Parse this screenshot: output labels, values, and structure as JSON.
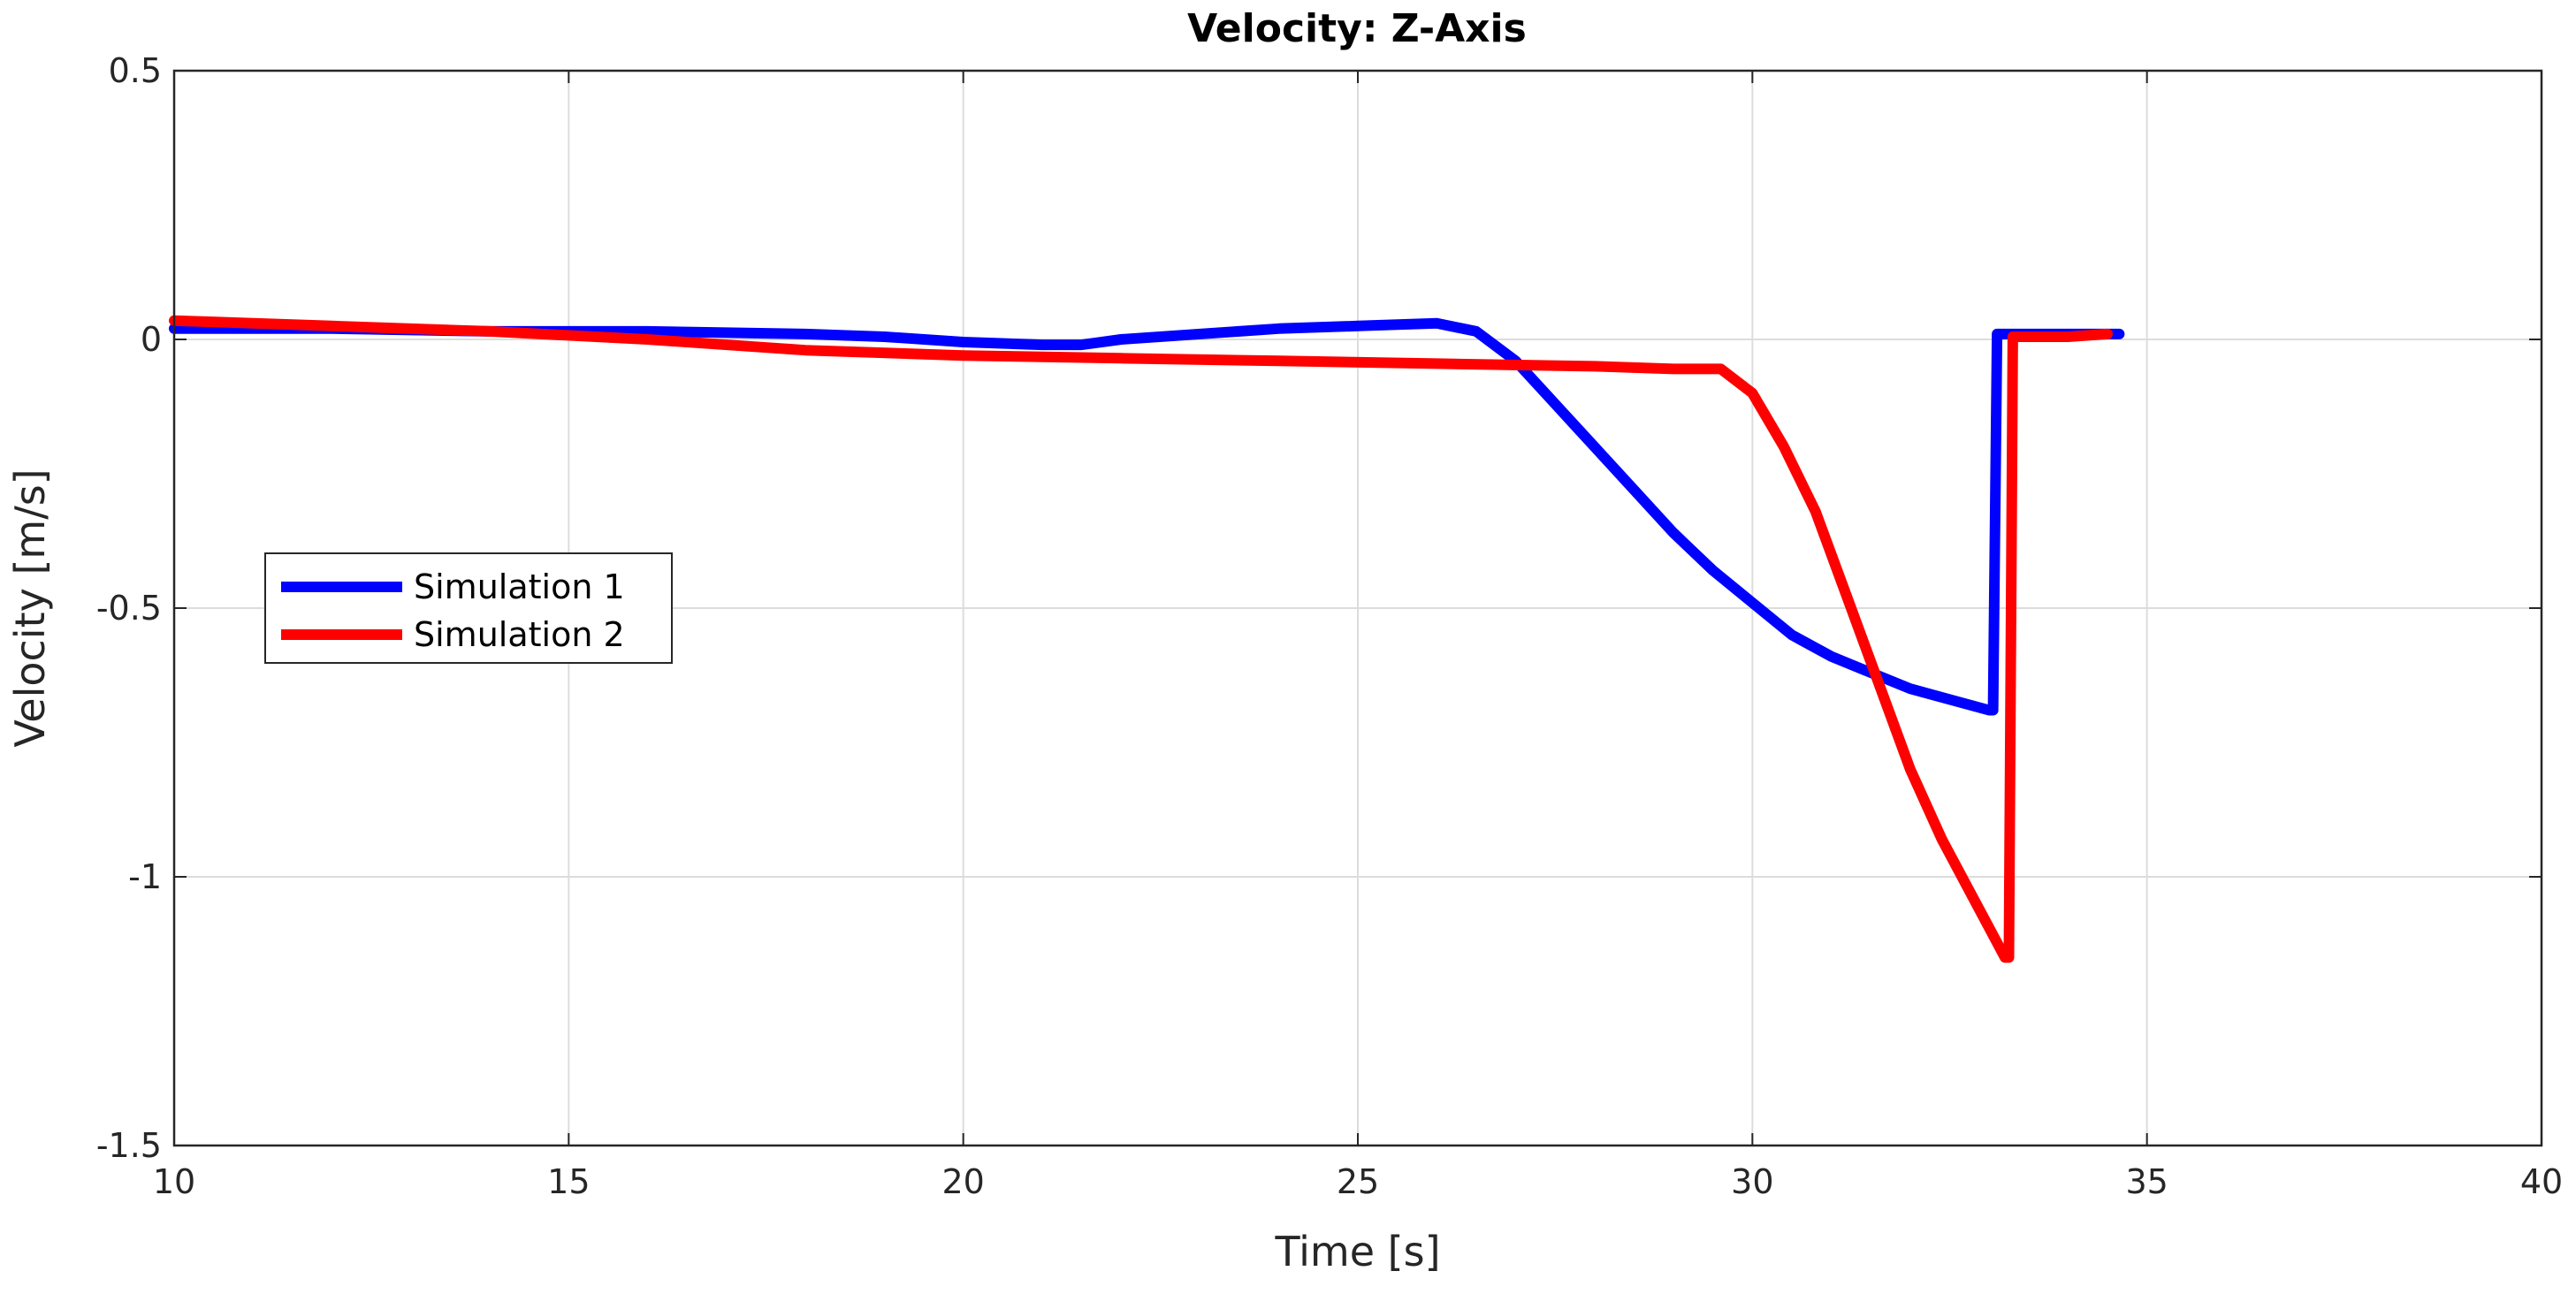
{
  "chart_data": {
    "type": "line",
    "title": "Velocity: Z-Axis",
    "xlabel": "Time [s]",
    "ylabel": "Velocity [m/s]",
    "xlim": [
      10,
      40
    ],
    "ylim": [
      -1.5,
      0.5
    ],
    "xticks": [
      10,
      15,
      20,
      25,
      30,
      35,
      40
    ],
    "yticks": [
      0.5,
      0,
      -0.5,
      -1,
      -1.5
    ],
    "xtick_labels": [
      "10",
      "15",
      "20",
      "25",
      "30",
      "35",
      "40"
    ],
    "ytick_labels": [
      "0.5",
      "0",
      "-0.5",
      "-1",
      "-1.5"
    ],
    "grid": true,
    "legend_location": "left-middle",
    "series": [
      {
        "name": "Simulation 1",
        "color": "#0000ff",
        "x": [
          10,
          12,
          14,
          16,
          18,
          19,
          20,
          21,
          21.5,
          22,
          23,
          24,
          25,
          26,
          26.5,
          27,
          27.5,
          28,
          28.5,
          29,
          29.5,
          30,
          30.5,
          31,
          31.5,
          32,
          32.5,
          33.0,
          33.05,
          33.1,
          33.5,
          34,
          34.5,
          34.65
        ],
        "y": [
          0.02,
          0.02,
          0.015,
          0.015,
          0.01,
          0.005,
          -0.005,
          -0.01,
          -0.01,
          0.0,
          0.01,
          0.02,
          0.025,
          0.03,
          0.015,
          -0.04,
          -0.12,
          -0.2,
          -0.28,
          -0.36,
          -0.43,
          -0.49,
          -0.55,
          -0.59,
          -0.62,
          -0.65,
          -0.67,
          -0.69,
          -0.69,
          0.01,
          0.01,
          0.01,
          0.01,
          0.01
        ]
      },
      {
        "name": "Simulation 2",
        "color": "#ff0000",
        "x": [
          10,
          12,
          14,
          16,
          18,
          20,
          22,
          24,
          26,
          28,
          29,
          29.6,
          30.0,
          30.4,
          30.8,
          31.2,
          31.6,
          32.0,
          32.4,
          32.8,
          33.2,
          33.25,
          33.3,
          33.6,
          34.0,
          34.5
        ],
        "y": [
          0.035,
          0.025,
          0.015,
          0.0,
          -0.02,
          -0.03,
          -0.035,
          -0.04,
          -0.045,
          -0.05,
          -0.055,
          -0.055,
          -0.1,
          -0.2,
          -0.32,
          -0.48,
          -0.64,
          -0.8,
          -0.93,
          -1.04,
          -1.15,
          -1.15,
          0.005,
          0.005,
          0.005,
          0.01
        ]
      }
    ]
  }
}
